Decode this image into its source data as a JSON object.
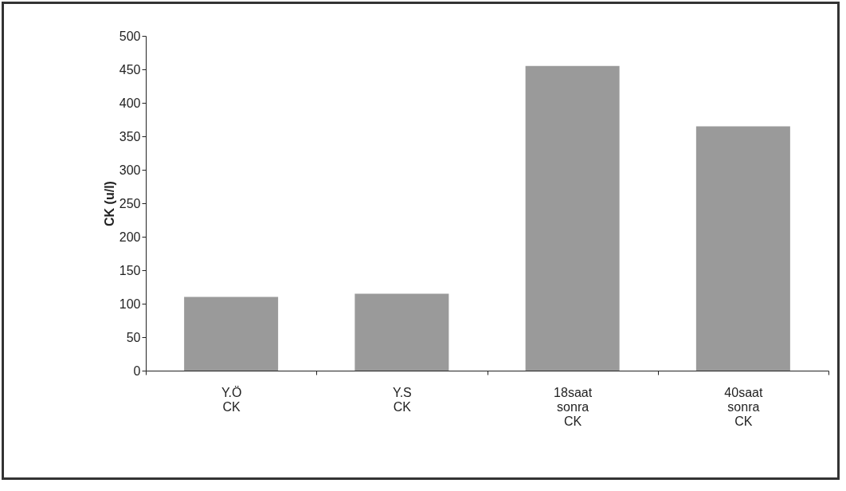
{
  "chart_data": {
    "type": "bar",
    "ylabel": "CK (u/l)",
    "categories": [
      "Y.Ö CK",
      "Y.S CK",
      "18saat sonra CK",
      "40saat sonra CK",
      null
    ],
    "values": [
      110,
      115,
      455,
      365,
      null
    ],
    "color": "#9a9a9a",
    "ylim": [
      0,
      500
    ],
    "yticks": [
      0,
      50,
      100,
      150,
      200,
      250,
      300,
      350,
      400,
      450,
      500
    ],
    "grid": false
  }
}
